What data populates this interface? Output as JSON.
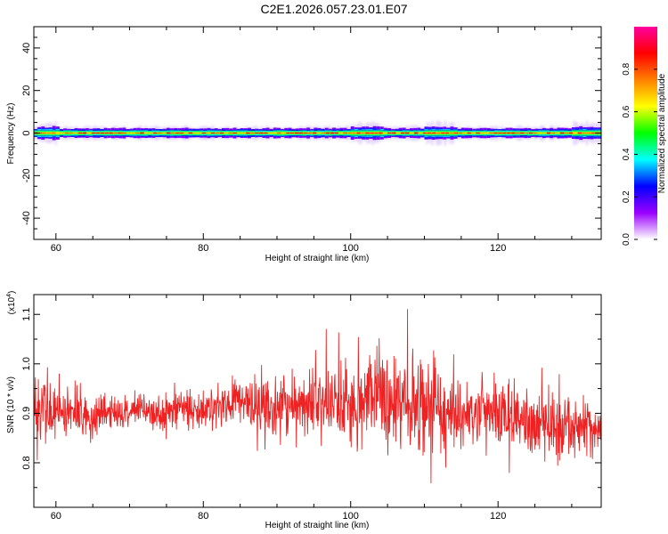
{
  "title": "C2E1.2026.057.23.01.E07",
  "chart_data": [
    {
      "type": "heatmap",
      "name": "spectrogram",
      "xlabel": "Height of straight line (km)",
      "ylabel": "Frequency (Hz)",
      "xlim": [
        57,
        134
      ],
      "ylim": [
        -50,
        50
      ],
      "xticks": [
        60,
        80,
        100,
        120
      ],
      "yticks": [
        -40,
        -20,
        0,
        20,
        40
      ],
      "colorbar": {
        "label": "Normalized spectral amplitude",
        "range": [
          0,
          1
        ],
        "ticks": [
          "0.0",
          "0.2",
          "0.4",
          "0.6",
          "0.8"
        ],
        "tick_values": [
          0.0,
          0.2,
          0.4,
          0.6,
          0.8
        ],
        "colors": [
          "#ffffff",
          "#9a00ff",
          "#0000ff",
          "#00ffff",
          "#00ff00",
          "#ffff00",
          "#ff8000",
          "#ff0000",
          "#ff00a0"
        ]
      },
      "band_center_hz": 0,
      "band_halfwidth_hz": 2,
      "wider_regions_km": [
        [
          57.5,
          60
        ],
        [
          100,
          104
        ],
        [
          110,
          114
        ],
        [
          130,
          134
        ]
      ],
      "grid": false
    },
    {
      "type": "line",
      "name": "snr",
      "xlabel": "Height of straight line (km)",
      "ylabel": "SNR (10 * v/v)",
      "yunit": "(x10",
      "yunit_exp": "4",
      "yunit_close": ")",
      "xlim": [
        57,
        134
      ],
      "ylim": [
        0.71,
        1.14
      ],
      "xticks": [
        60,
        80,
        100,
        120
      ],
      "yticks": [
        "0.8",
        "0.9",
        "1.0",
        "1.1"
      ],
      "ytick_values": [
        0.8,
        0.9,
        1.0,
        1.1
      ],
      "line_color": "#ee2222",
      "series": [
        {
          "x": [
            57,
            59,
            61,
            63,
            65,
            67,
            69,
            71,
            73,
            75,
            77,
            79,
            81,
            83,
            85,
            87,
            89,
            91,
            93,
            95,
            97,
            99,
            101,
            103,
            105,
            107,
            109,
            111,
            113,
            115,
            117,
            119,
            121,
            123,
            125,
            127,
            129,
            131,
            133
          ],
          "y_mean": [
            0.9,
            0.91,
            0.9,
            0.9,
            0.89,
            0.9,
            0.9,
            0.91,
            0.9,
            0.9,
            0.91,
            0.91,
            0.91,
            0.92,
            0.92,
            0.91,
            0.91,
            0.91,
            0.91,
            0.92,
            0.92,
            0.92,
            0.92,
            0.93,
            0.94,
            0.93,
            0.92,
            0.91,
            0.9,
            0.89,
            0.9,
            0.9,
            0.9,
            0.89,
            0.88,
            0.88,
            0.87,
            0.87,
            0.87
          ],
          "y_spread": [
            0.12,
            0.09,
            0.08,
            0.07,
            0.06,
            0.05,
            0.05,
            0.05,
            0.05,
            0.06,
            0.06,
            0.06,
            0.07,
            0.07,
            0.07,
            0.08,
            0.09,
            0.1,
            0.1,
            0.11,
            0.11,
            0.12,
            0.13,
            0.14,
            0.15,
            0.14,
            0.14,
            0.13,
            0.12,
            0.11,
            0.1,
            0.1,
            0.1,
            0.1,
            0.1,
            0.1,
            0.09,
            0.09,
            0.1
          ]
        }
      ]
    }
  ]
}
